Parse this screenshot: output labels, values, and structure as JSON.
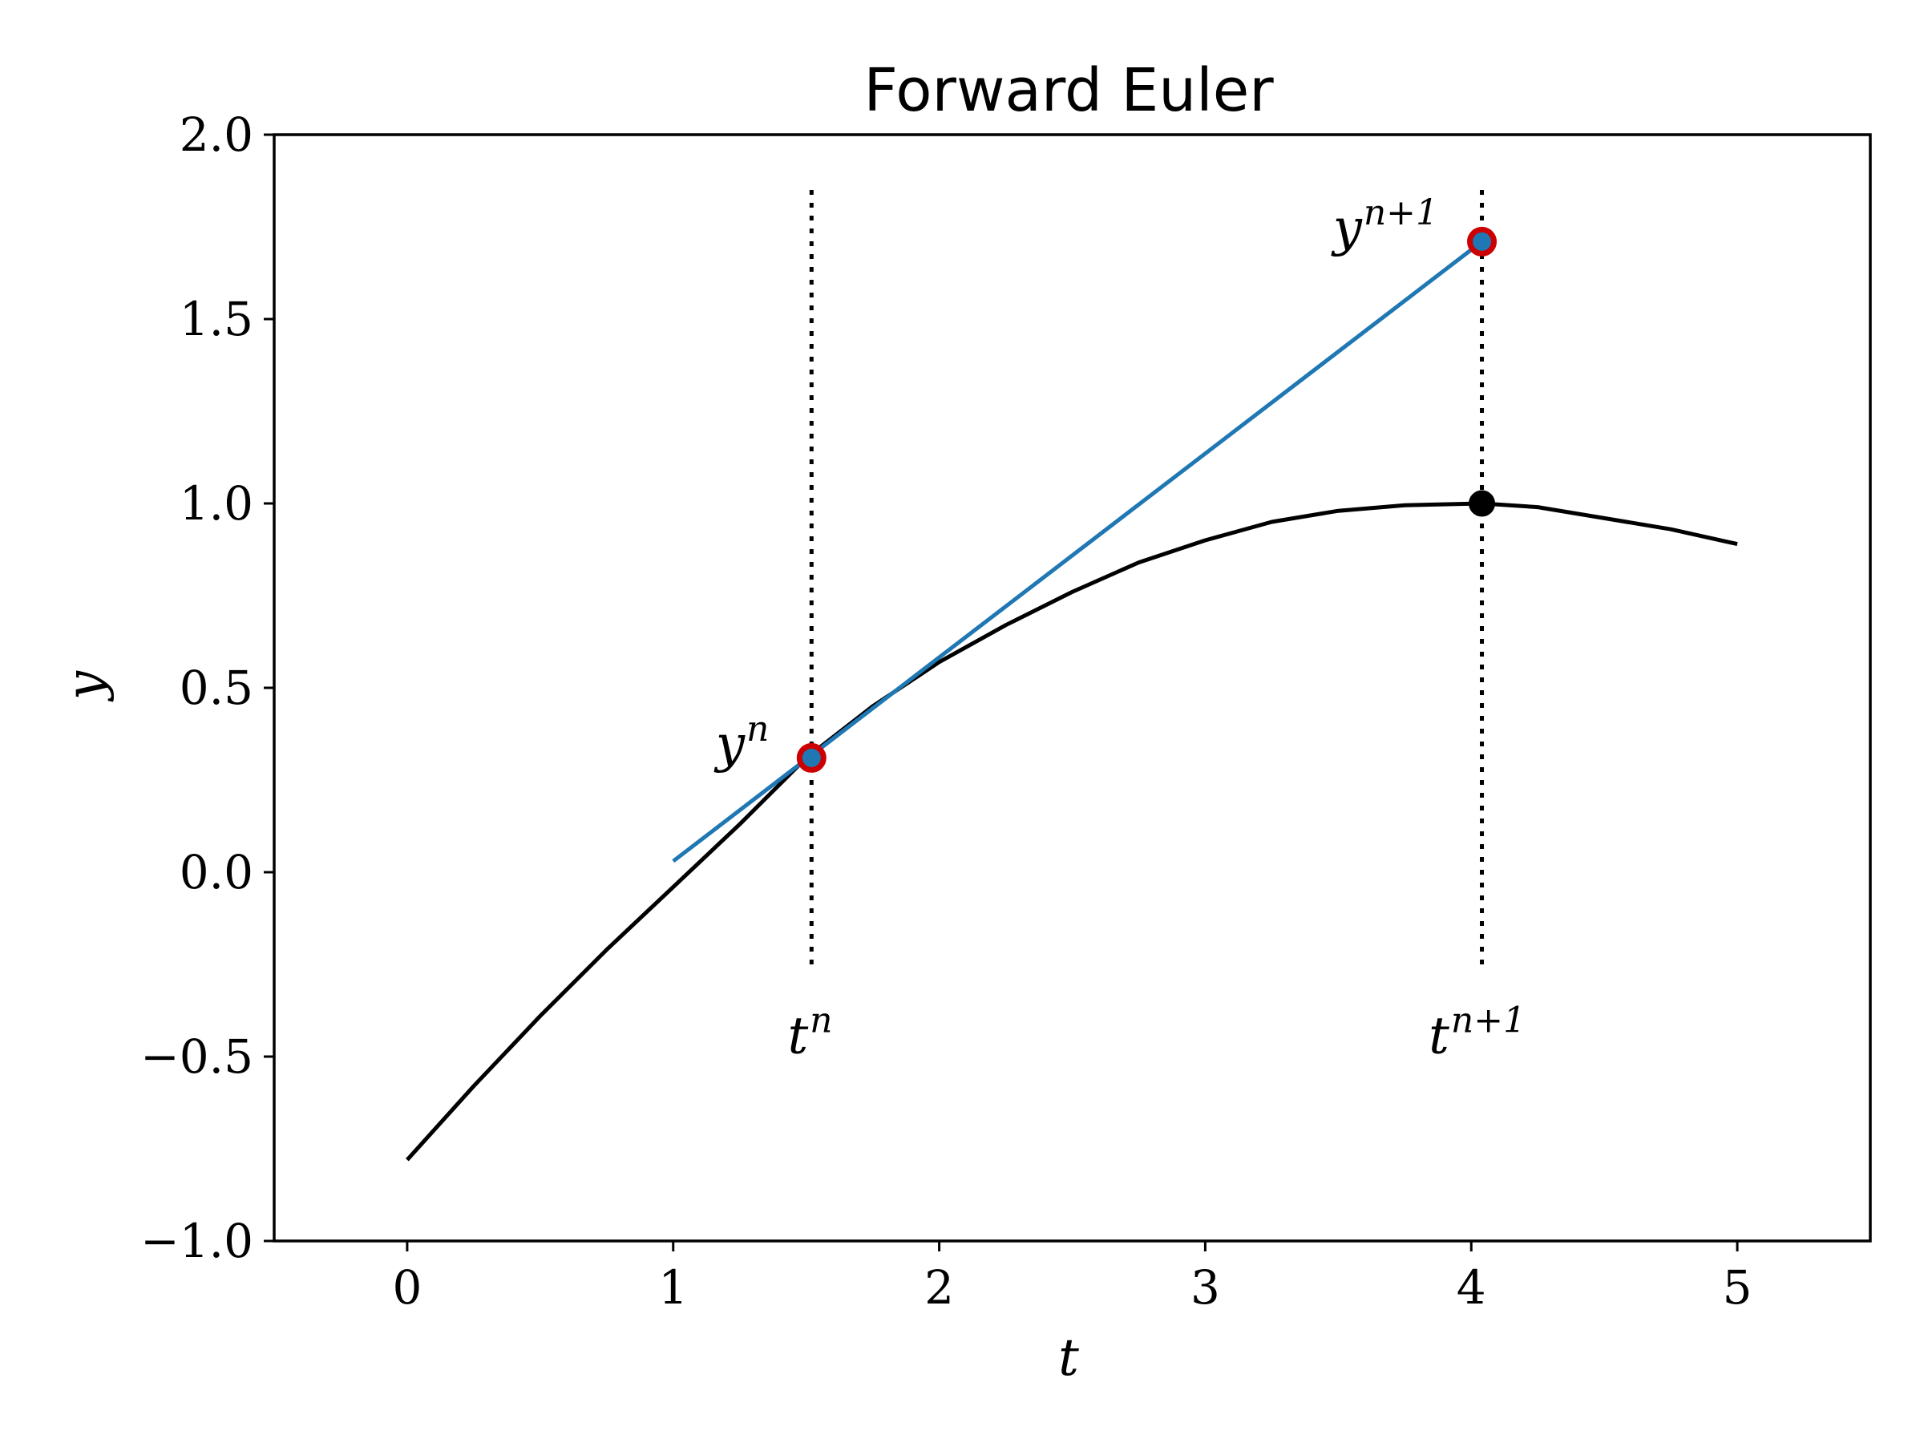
{
  "chart_data": {
    "type": "line",
    "title": "Forward Euler",
    "xlabel": "t",
    "ylabel": "y",
    "xlim": [
      -0.5,
      5.5
    ],
    "ylim": [
      -1.0,
      2.0
    ],
    "xticks": [
      0,
      1,
      2,
      3,
      4,
      5
    ],
    "xtick_labels": [
      "0",
      "1",
      "2",
      "3",
      "4",
      "5"
    ],
    "yticks": [
      -1.0,
      -0.5,
      0.0,
      0.5,
      1.0,
      1.5,
      2.0
    ],
    "ytick_labels": [
      "−1.0",
      "−0.5",
      "0.0",
      "0.5",
      "1.0",
      "1.5",
      "2.0"
    ],
    "grid": false,
    "series": [
      {
        "kind": "curve",
        "color": "#000000",
        "x": [
          0,
          0.25,
          0.5,
          0.75,
          1.0,
          1.25,
          1.5,
          1.75,
          2.0,
          2.25,
          2.5,
          2.75,
          3.0,
          3.25,
          3.5,
          3.75,
          4.04,
          4.25,
          4.5,
          4.75,
          5.0
        ],
        "y": [
          -0.78,
          -0.58,
          -0.39,
          -0.21,
          -0.04,
          0.13,
          0.31,
          0.45,
          0.57,
          0.67,
          0.76,
          0.84,
          0.9,
          0.95,
          0.98,
          0.995,
          1.0,
          0.99,
          0.96,
          0.93,
          0.89
        ]
      },
      {
        "kind": "tangent",
        "color": "#1f77b4",
        "x": [
          1.0,
          4.04
        ],
        "y": [
          0.03,
          1.71
        ]
      }
    ],
    "guides": [
      {
        "x": 1.52,
        "y_from": -0.25,
        "y_to": 1.85,
        "style": "dotted",
        "color": "#000000"
      },
      {
        "x": 4.04,
        "y_from": -0.25,
        "y_to": 1.85,
        "style": "dotted",
        "color": "#000000"
      }
    ],
    "points": [
      {
        "x": 1.52,
        "y": 0.31,
        "fill": "#1f77b4",
        "edge": "#cc0000"
      },
      {
        "x": 4.04,
        "y": 1.71,
        "fill": "#1f77b4",
        "edge": "#cc0000"
      },
      {
        "x": 4.04,
        "y": 1.0,
        "fill": "#000000",
        "edge": "#000000"
      }
    ],
    "annotations": [
      {
        "base": "y",
        "sup": "n",
        "x": 1.16,
        "y": 0.3
      },
      {
        "base": "y",
        "sup": "n+1",
        "x": 3.48,
        "y": 1.7
      },
      {
        "base": "t",
        "sup": "n",
        "x": 1.43,
        "y": -0.49
      },
      {
        "base": "t",
        "sup": "n+1",
        "x": 3.84,
        "y": -0.49
      }
    ]
  }
}
